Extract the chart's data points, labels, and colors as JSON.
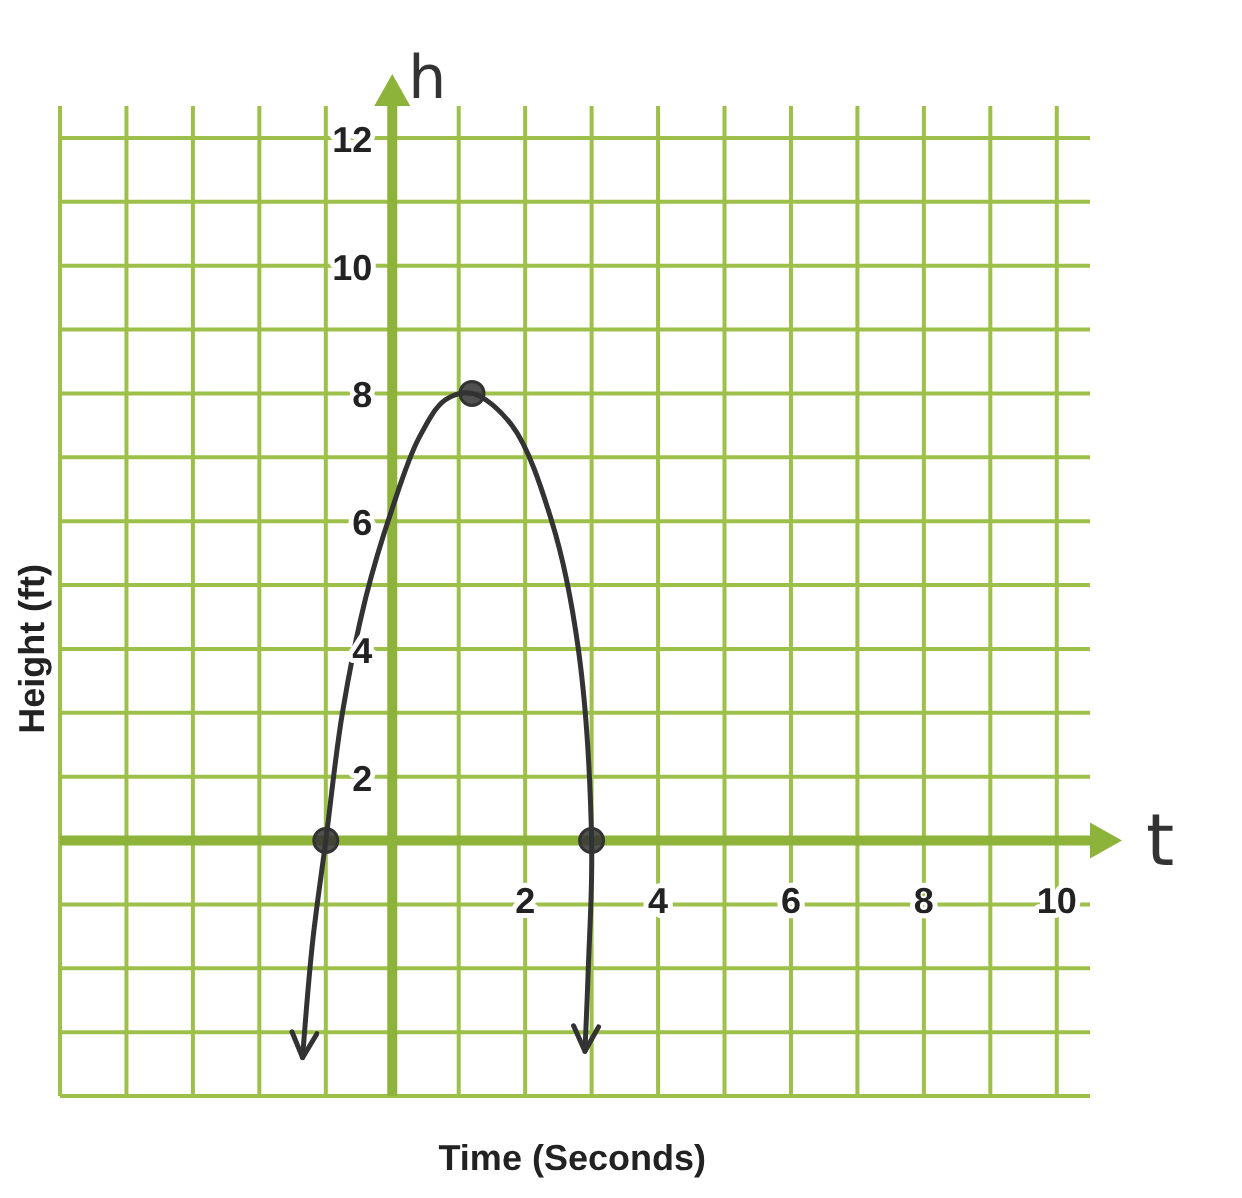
{
  "chart_data": {
    "type": "line",
    "xlabel": "Time (Seconds)",
    "ylabel": "Height (ft)",
    "annotations": [
      "h",
      "t"
    ],
    "xlim": [
      -5,
      10.5
    ],
    "ylim": [
      -3,
      12.5
    ],
    "xticks": [
      {
        "value": -5,
        "label": null
      },
      {
        "value": -4,
        "label": null
      },
      {
        "value": -3,
        "label": null
      },
      {
        "value": -2,
        "label": null
      },
      {
        "value": -1,
        "label": null
      },
      {
        "value": 0,
        "label": null
      },
      {
        "value": 1,
        "label": null
      },
      2,
      {
        "value": 3,
        "label": null
      },
      4,
      {
        "value": 5,
        "label": null
      },
      6,
      {
        "value": 7,
        "label": null
      },
      8,
      {
        "value": 9,
        "label": null
      },
      10
    ],
    "yticks": [
      {
        "value": -3,
        "label": null
      },
      {
        "value": -2,
        "label": null
      },
      {
        "value": -1,
        "label": null
      },
      {
        "value": 0,
        "label": null
      },
      {
        "value": 1,
        "label": null
      },
      2,
      {
        "value": 3,
        "label": null
      },
      4,
      {
        "value": 5,
        "label": null
      },
      6,
      {
        "value": 7,
        "label": null
      },
      8,
      {
        "value": 9,
        "label": null
      },
      10,
      {
        "value": 11,
        "label": null
      },
      12
    ],
    "grid": true,
    "series": [
      {
        "color": "#333333",
        "marker": "none",
        "x": [
          -1.35,
          -1.2,
          -1,
          -0.75,
          -0.4,
          0,
          0.4,
          0.8,
          1.2,
          1.8,
          2.4,
          2.8,
          3,
          2.95,
          2.9
        ],
        "values": [
          -2.4,
          -0.6,
          1,
          3,
          4.8,
          6.2,
          7.3,
          7.9,
          8,
          7.5,
          6,
          4,
          1,
          -1,
          -2.3
        ]
      },
      {
        "type": "scatter",
        "color": "#333333",
        "marker": "circle",
        "x": [
          -1,
          1.2,
          3
        ],
        "values": [
          1,
          8,
          1
        ]
      }
    ]
  }
}
